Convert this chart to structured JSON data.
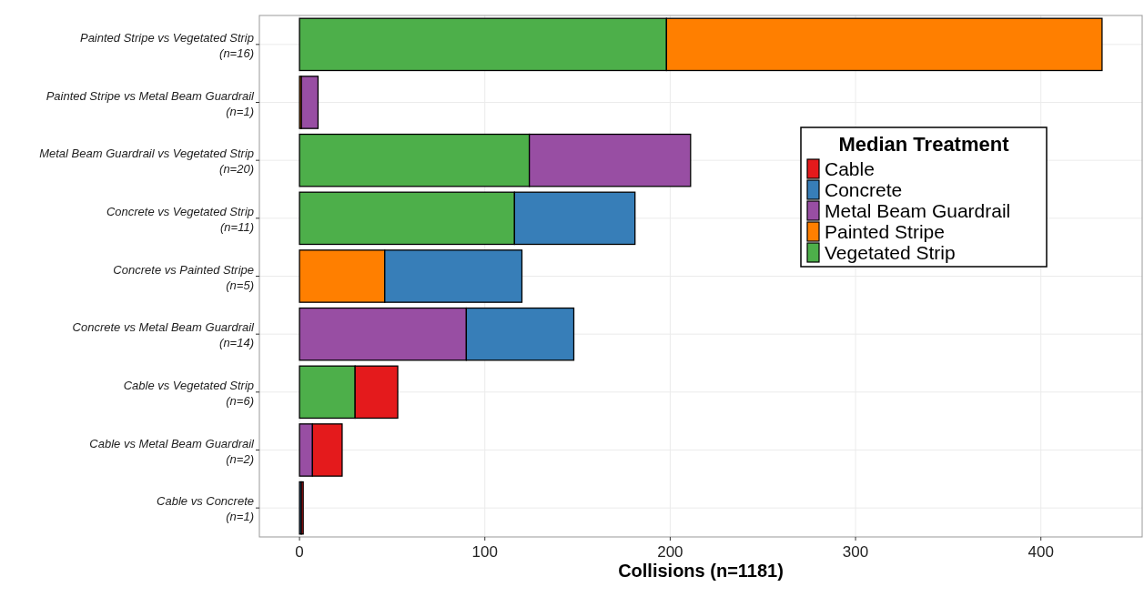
{
  "chart_data": {
    "type": "bar",
    "orientation": "horizontal",
    "stacked": true,
    "xlabel": "Collisions (n=1181)",
    "legend_title": "Median Treatment",
    "legend": "top right",
    "grid": true,
    "categories": [
      "Painted Stripe vs Vegetated Strip\n(n=16)",
      "Painted Stripe vs Metal Beam Guardrail\n(n=1)",
      "Metal Beam Guardrail vs Vegetated Strip\n(n=20)",
      "Concrete vs Vegetated Strip\n(n=11)",
      "Concrete vs Painted Stripe\n(n=5)",
      "Concrete vs Metal Beam Guardrail\n(n=14)",
      "Cable vs Vegetated Strip\n(n=6)",
      "Cable vs Metal Beam Guardrail\n(n=2)",
      "Cable vs Concrete\n(n=1)"
    ],
    "series": [
      {
        "name": "Vegetated Strip",
        "color": "#4daf4a",
        "values": [
          198,
          null,
          124,
          116,
          null,
          null,
          30,
          null,
          null
        ]
      },
      {
        "name": "Painted Stripe",
        "color": "#ff7f00",
        "values": [
          235,
          1,
          null,
          null,
          46,
          null,
          null,
          null,
          null
        ]
      },
      {
        "name": "Metal Beam Guardrail",
        "color": "#984ea3",
        "values": [
          null,
          9,
          87,
          null,
          null,
          90,
          null,
          7,
          null
        ]
      },
      {
        "name": "Concrete",
        "color": "#377eb8",
        "values": [
          null,
          null,
          null,
          65,
          74,
          58,
          null,
          null,
          1
        ]
      },
      {
        "name": "Cable",
        "color": "#e41a1c",
        "values": [
          null,
          null,
          null,
          null,
          null,
          null,
          23,
          16,
          1
        ]
      }
    ],
    "xlim": [
      -21.65,
      454.65
    ],
    "xticks": [
      0,
      100,
      200,
      300,
      400
    ]
  }
}
